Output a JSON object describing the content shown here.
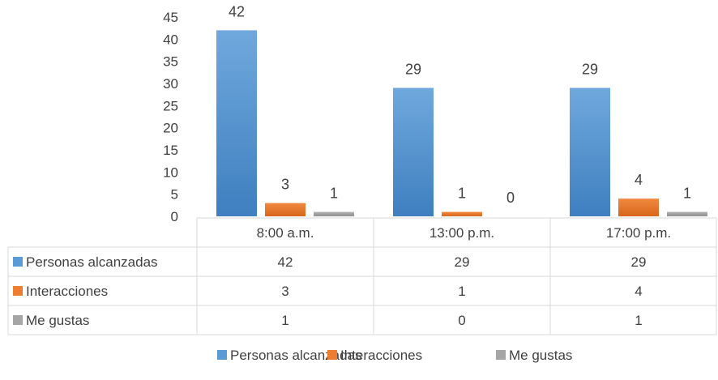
{
  "chart_data": {
    "type": "bar",
    "title": "",
    "xlabel": "",
    "ylabel": "",
    "ylim": [
      0,
      45
    ],
    "yticks": [
      0,
      5,
      10,
      15,
      20,
      25,
      30,
      35,
      40,
      45
    ],
    "grid": false,
    "legend": "bottom",
    "data_table": true,
    "categories": [
      "8:00 a.m.",
      "13:00 p.m.",
      "17:00 p.m."
    ],
    "series": [
      {
        "name": "Personas alcanzadas",
        "values": [
          42,
          29,
          29
        ],
        "color": "#5B9BD5"
      },
      {
        "name": "Interacciones",
        "values": [
          3,
          1,
          4
        ],
        "color": "#ED7D31"
      },
      {
        "name": "Me gustas",
        "values": [
          1,
          0,
          1
        ],
        "color": "#A5A5A5"
      }
    ]
  }
}
